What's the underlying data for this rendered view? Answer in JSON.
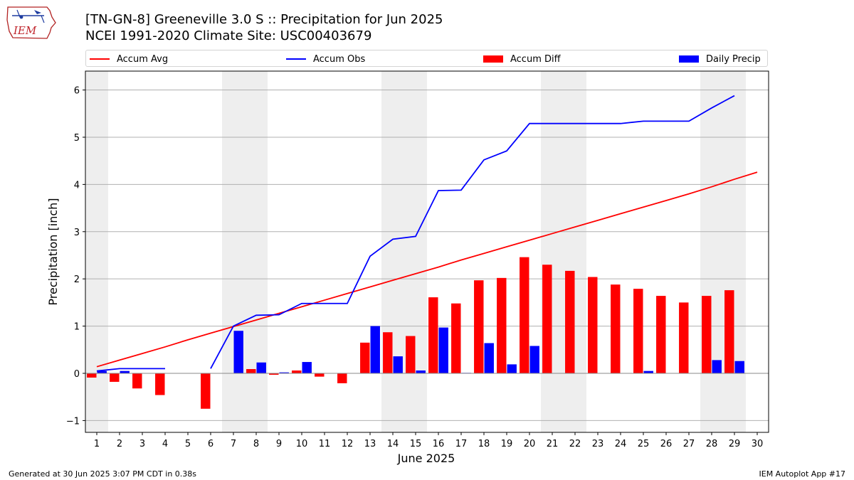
{
  "header": {
    "logo_text": "IEM",
    "title_line1": "[TN-GN-8] Greeneville 3.0 S :: Precipitation for Jun 2025",
    "title_line2": "NCEI 1991-2020 Climate Site: USC00403679"
  },
  "colors": {
    "accum_avg": "#ff0000",
    "accum_obs": "#0000ff",
    "accum_diff": "#ff0000",
    "daily_precip": "#0000ff",
    "weekend_shade": "#eeeeee",
    "grid": "#b0b0b0"
  },
  "footer": {
    "generated": "Generated at 30 Jun 2025 3:07 PM CDT in 0.38s",
    "app": "IEM Autoplot App #17"
  },
  "chart_data": {
    "type": "bar",
    "title": "[TN-GN-8] Greeneville 3.0 S :: Precipitation for Jun 2025",
    "subtitle": "NCEI 1991-2020 Climate Site: USC00403679",
    "xlabel": "June 2025",
    "ylabel": "Precipitation [inch]",
    "ylim": [
      -1.25,
      6.4
    ],
    "xlim": [
      0.5,
      30.5
    ],
    "yticks": [
      -1,
      0,
      1,
      2,
      3,
      4,
      5,
      6
    ],
    "days": [
      1,
      2,
      3,
      4,
      5,
      6,
      7,
      8,
      9,
      10,
      11,
      12,
      13,
      14,
      15,
      16,
      17,
      18,
      19,
      20,
      21,
      22,
      23,
      24,
      25,
      26,
      27,
      28,
      29,
      30
    ],
    "shaded_days": [
      [
        1,
        1
      ],
      [
        7,
        8
      ],
      [
        14,
        15
      ],
      [
        21,
        22
      ],
      [
        28,
        29
      ]
    ],
    "grid": true,
    "legend_position": "top",
    "legend": [
      "Accum Avg",
      "Accum Obs",
      "Accum Diff",
      "Daily Precip"
    ],
    "series": [
      {
        "name": "Accum Avg",
        "kind": "line",
        "x": [
          1,
          2,
          3,
          4,
          5,
          6,
          7,
          8,
          9,
          10,
          11,
          12,
          13,
          14,
          15,
          16,
          17,
          18,
          19,
          20,
          21,
          22,
          23,
          24,
          25,
          26,
          27,
          28,
          29,
          30
        ],
        "values": [
          0.14,
          0.28,
          0.42,
          0.56,
          0.71,
          0.85,
          0.99,
          1.13,
          1.27,
          1.41,
          1.55,
          1.69,
          1.83,
          1.97,
          2.11,
          2.25,
          2.4,
          2.54,
          2.68,
          2.82,
          2.96,
          3.1,
          3.24,
          3.38,
          3.52,
          3.66,
          3.8,
          3.95,
          4.11,
          4.26
        ]
      },
      {
        "name": "Accum Obs",
        "kind": "line",
        "segments": [
          {
            "x": [
              1,
              2,
              3,
              4
            ],
            "values": [
              0.05,
              0.1,
              0.1,
              0.1
            ]
          },
          {
            "x": [
              6,
              7,
              8,
              9,
              10,
              11,
              12,
              13,
              14,
              15,
              16,
              17,
              18,
              19,
              20,
              21,
              22,
              23,
              24,
              25,
              26,
              27,
              28,
              29
            ],
            "values": [
              0.1,
              1.0,
              1.23,
              1.24,
              1.48,
              1.48,
              1.48,
              2.48,
              2.84,
              2.9,
              3.87,
              3.88,
              4.52,
              4.71,
              5.29,
              5.29,
              5.29,
              5.29,
              5.29,
              5.34,
              5.34,
              5.34,
              5.62,
              5.88
            ]
          }
        ]
      },
      {
        "name": "Accum Diff",
        "kind": "bar",
        "x": [
          1,
          2,
          3,
          4,
          6,
          8,
          9,
          10,
          11,
          12,
          13,
          14,
          15,
          16,
          17,
          18,
          19,
          20,
          21,
          22,
          23,
          24,
          25,
          26,
          27,
          28,
          29
        ],
        "values": [
          -0.09,
          -0.18,
          -0.32,
          -0.46,
          -0.75,
          0.09,
          -0.03,
          0.06,
          -0.07,
          -0.21,
          0.65,
          0.87,
          0.79,
          1.61,
          1.48,
          1.97,
          2.02,
          2.46,
          2.3,
          2.17,
          2.04,
          1.88,
          1.79,
          1.64,
          1.5,
          1.64,
          1.76
        ]
      },
      {
        "name": "Daily Precip",
        "kind": "bar",
        "x": [
          1,
          2,
          7,
          8,
          9,
          10,
          13,
          14,
          15,
          16,
          17,
          18,
          19,
          20,
          25,
          28,
          29
        ],
        "values": [
          0.05,
          0.05,
          0.9,
          0.23,
          0.02,
          0.24,
          1.0,
          0.36,
          0.06,
          0.97,
          0.01,
          0.64,
          0.19,
          0.58,
          0.05,
          0.28,
          0.26
        ]
      }
    ]
  }
}
